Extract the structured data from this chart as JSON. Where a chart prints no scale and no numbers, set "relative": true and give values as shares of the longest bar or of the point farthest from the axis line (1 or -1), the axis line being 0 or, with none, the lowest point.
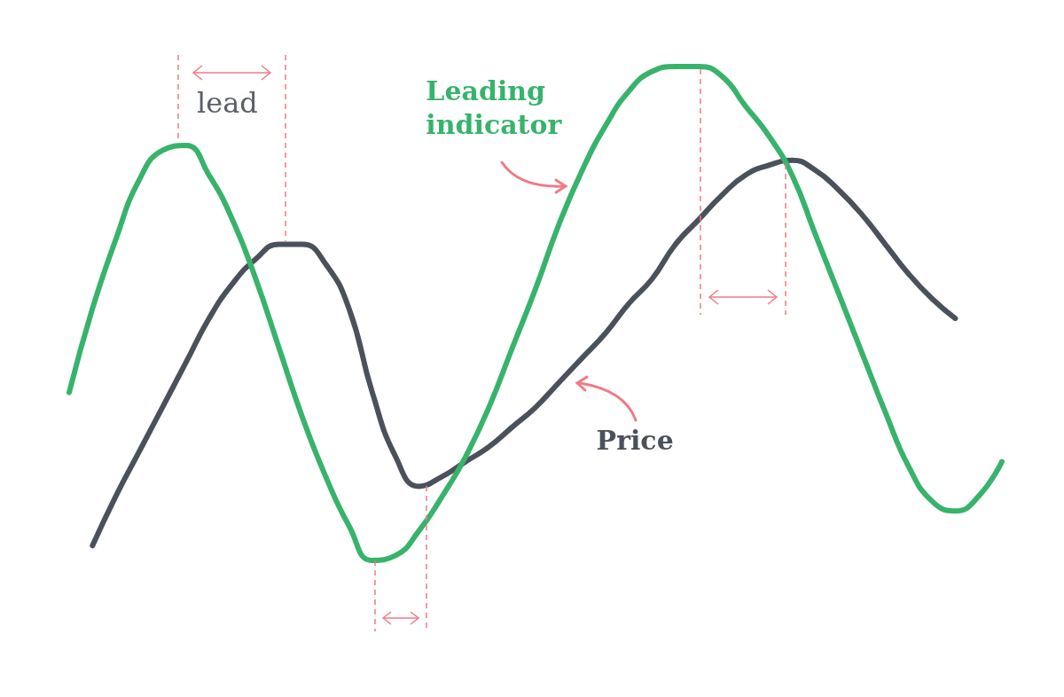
{
  "chart_data": {
    "type": "line",
    "relative": true,
    "marker": "none",
    "categories": [
      null,
      null,
      null,
      null,
      null,
      null,
      null,
      null,
      null,
      null,
      null,
      null,
      null,
      null,
      null,
      null,
      null,
      null,
      null,
      null,
      null,
      null,
      null,
      null,
      null,
      null,
      null,
      null,
      null,
      null,
      null,
      null,
      null,
      null,
      null,
      null,
      null,
      null,
      null,
      null,
      null
    ],
    "series": [
      {
        "name": "Leading indicator",
        "color": "#37b36b",
        "values": [
          0.34,
          0.51,
          0.65,
          0.77,
          0.83,
          0.84,
          0.78,
          0.69,
          0.57,
          0.43,
          0.29,
          0.17,
          0.07,
          0.0,
          0.01,
          0.06,
          0.13,
          0.21,
          0.31,
          0.43,
          0.55,
          0.68,
          0.79,
          0.88,
          0.95,
          0.99,
          1.0,
          1.0,
          0.98,
          0.92,
          0.86,
          0.78,
          0.66,
          0.54,
          0.42,
          0.3,
          0.19,
          0.12,
          0.1,
          0.13,
          0.2
        ]
      },
      {
        "name": "Price",
        "color": "#4b515b",
        "values": [
          null,
          0.03,
          0.13,
          0.22,
          0.31,
          0.4,
          0.49,
          0.56,
          0.61,
          0.64,
          0.64,
          0.6,
          0.51,
          0.34,
          0.21,
          0.15,
          0.17,
          0.2,
          0.23,
          0.27,
          0.31,
          0.36,
          0.41,
          0.46,
          0.52,
          0.57,
          0.64,
          0.69,
          0.74,
          0.78,
          0.8,
          0.81,
          0.79,
          0.75,
          0.7,
          0.64,
          0.58,
          0.53,
          0.49,
          null,
          null
        ]
      }
    ],
    "annotations": [
      "lead"
    ]
  }
}
